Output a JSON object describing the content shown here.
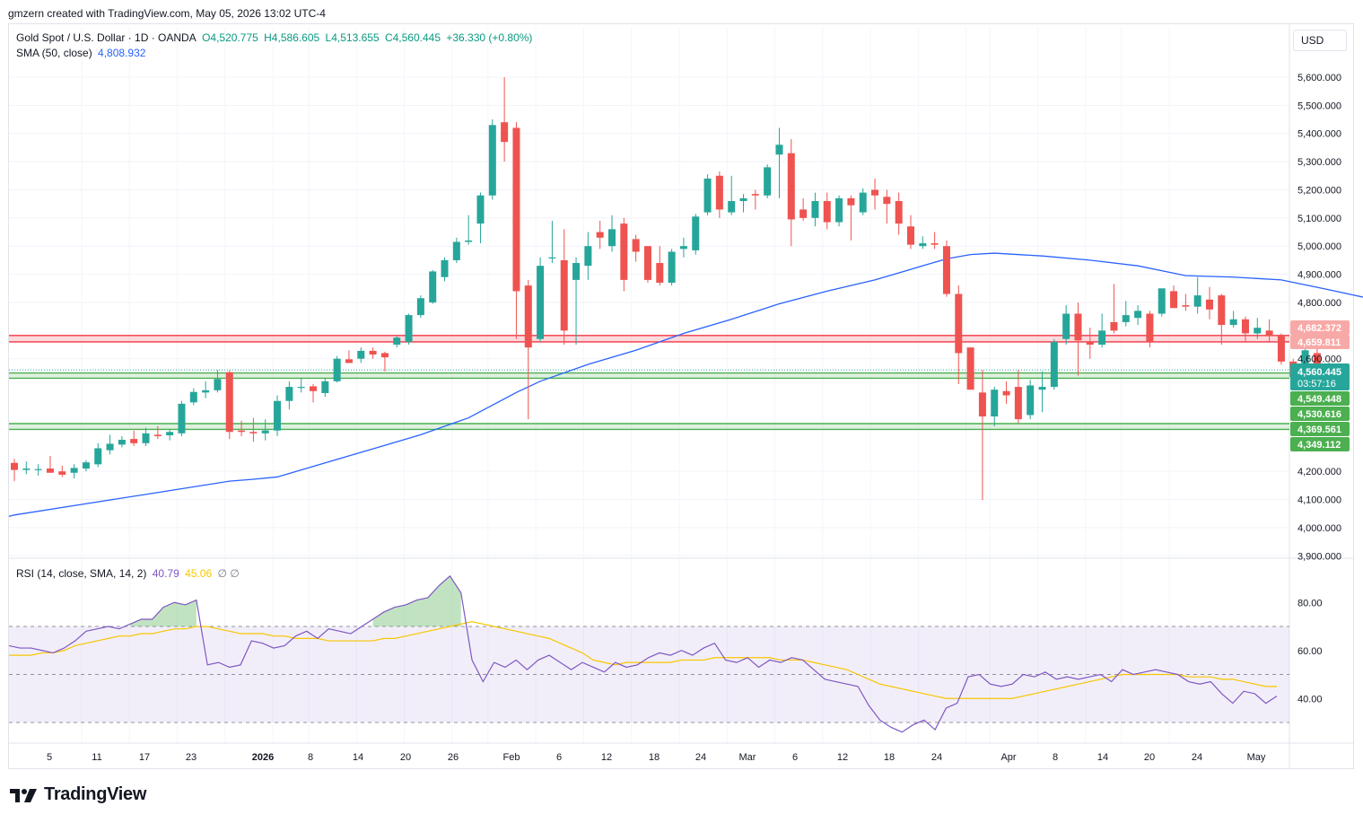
{
  "header": {
    "credit": "gmzern created with TradingView.com, May 05, 2026 13:02 UTC-4"
  },
  "legend": {
    "symbol": "Gold Spot / U.S. Dollar · 1D · OANDA",
    "open": "O4,520.775",
    "high": "H4,586.605",
    "low": "L4,513.655",
    "close": "C4,560.445",
    "change": "+36.330 (+0.80%)",
    "ma_label": "SMA (50, close)",
    "ma_value": "4,808.932",
    "rsi_label": "RSI (14, close, SMA, 14, 2)",
    "rsi_value": "40.79",
    "rsi_ma_value": "45.06",
    "rsi_extra": "∅ ∅"
  },
  "currency": "USD",
  "branding": "TradingView",
  "colors": {
    "up": "#26a69a",
    "down": "#ef5350",
    "sma": "#2962ff",
    "rsi": "#7e57c2",
    "rsi_ma": "#f7c600",
    "resistance_zone": "#f23645",
    "support_zone": "#4caf50"
  },
  "chart_data": [
    {
      "type": "candlestick",
      "title": "Gold Spot / U.S. Dollar · 1D · OANDA",
      "ylim": [
        3900,
        5700
      ],
      "y_ticks": [
        "5,600.000",
        "5,500.000",
        "5,400.000",
        "5,300.000",
        "5,200.000",
        "5,100.000",
        "5,000.000",
        "4,900.000",
        "4,800.000",
        "4,600.000",
        "4,200.000",
        "4,100.000",
        "4,000.000",
        "3,900.000"
      ],
      "x_ticks": [
        "5",
        "11",
        "17",
        "23",
        "2026",
        "8",
        "14",
        "20",
        "26",
        "Feb",
        "6",
        "12",
        "18",
        "24",
        "Mar",
        "6",
        "12",
        "18",
        "24",
        "Apr",
        "8",
        "14",
        "20",
        "24",
        "May"
      ],
      "candles": [
        {
          "o": 4230,
          "h": 4245,
          "l": 4165,
          "c": 4205
        },
        {
          "o": 4205,
          "h": 4235,
          "l": 4190,
          "c": 4210
        },
        {
          "o": 4205,
          "h": 4225,
          "l": 4185,
          "c": 4208
        },
        {
          "o": 4210,
          "h": 4255,
          "l": 4195,
          "c": 4195
        },
        {
          "o": 4200,
          "h": 4220,
          "l": 4180,
          "c": 4188
        },
        {
          "o": 4195,
          "h": 4225,
          "l": 4175,
          "c": 4212
        },
        {
          "o": 4210,
          "h": 4240,
          "l": 4200,
          "c": 4232
        },
        {
          "o": 4225,
          "h": 4300,
          "l": 4215,
          "c": 4282
        },
        {
          "o": 4275,
          "h": 4330,
          "l": 4260,
          "c": 4298
        },
        {
          "o": 4295,
          "h": 4325,
          "l": 4285,
          "c": 4312
        },
        {
          "o": 4315,
          "h": 4345,
          "l": 4290,
          "c": 4300
        },
        {
          "o": 4300,
          "h": 4355,
          "l": 4290,
          "c": 4335
        },
        {
          "o": 4330,
          "h": 4360,
          "l": 4315,
          "c": 4325
        },
        {
          "o": 4328,
          "h": 4350,
          "l": 4310,
          "c": 4340
        },
        {
          "o": 4335,
          "h": 4450,
          "l": 4325,
          "c": 4440
        },
        {
          "o": 4445,
          "h": 4495,
          "l": 4435,
          "c": 4482
        },
        {
          "o": 4480,
          "h": 4520,
          "l": 4460,
          "c": 4488
        },
        {
          "o": 4488,
          "h": 4560,
          "l": 4480,
          "c": 4528
        },
        {
          "o": 4552,
          "h": 4558,
          "l": 4315,
          "c": 4340
        },
        {
          "o": 4345,
          "h": 4380,
          "l": 4325,
          "c": 4340
        },
        {
          "o": 4340,
          "h": 4390,
          "l": 4305,
          "c": 4335
        },
        {
          "o": 4335,
          "h": 4385,
          "l": 4310,
          "c": 4345
        },
        {
          "o": 4345,
          "h": 4470,
          "l": 4325,
          "c": 4450
        },
        {
          "o": 4450,
          "h": 4520,
          "l": 4420,
          "c": 4500
        },
        {
          "o": 4500,
          "h": 4530,
          "l": 4480,
          "c": 4500
        },
        {
          "o": 4502,
          "h": 4510,
          "l": 4445,
          "c": 4485
        },
        {
          "o": 4478,
          "h": 4530,
          "l": 4465,
          "c": 4520
        },
        {
          "o": 4520,
          "h": 4610,
          "l": 4515,
          "c": 4600
        },
        {
          "o": 4598,
          "h": 4630,
          "l": 4590,
          "c": 4585
        },
        {
          "o": 4600,
          "h": 4640,
          "l": 4585,
          "c": 4628
        },
        {
          "o": 4628,
          "h": 4640,
          "l": 4600,
          "c": 4615
        },
        {
          "o": 4620,
          "h": 4625,
          "l": 4555,
          "c": 4605
        },
        {
          "o": 4650,
          "h": 4680,
          "l": 4640,
          "c": 4675
        },
        {
          "o": 4660,
          "h": 4760,
          "l": 4650,
          "c": 4755
        },
        {
          "o": 4755,
          "h": 4825,
          "l": 4745,
          "c": 4815
        },
        {
          "o": 4800,
          "h": 4915,
          "l": 4795,
          "c": 4910
        },
        {
          "o": 4890,
          "h": 4960,
          "l": 4875,
          "c": 4950
        },
        {
          "o": 4950,
          "h": 5030,
          "l": 4940,
          "c": 5015
        },
        {
          "o": 5015,
          "h": 5110,
          "l": 5005,
          "c": 5020
        },
        {
          "o": 5080,
          "h": 5190,
          "l": 5010,
          "c": 5180
        },
        {
          "o": 5180,
          "h": 5450,
          "l": 5165,
          "c": 5430
        },
        {
          "o": 5440,
          "h": 5600,
          "l": 5300,
          "c": 5370
        },
        {
          "o": 5420,
          "h": 5440,
          "l": 4670,
          "c": 4840
        },
        {
          "o": 4860,
          "h": 4880,
          "l": 4385,
          "c": 4640
        },
        {
          "o": 4670,
          "h": 4960,
          "l": 4660,
          "c": 4930
        },
        {
          "o": 4960,
          "h": 5090,
          "l": 4940,
          "c": 4960
        },
        {
          "o": 4950,
          "h": 5060,
          "l": 4650,
          "c": 4700
        },
        {
          "o": 4880,
          "h": 4960,
          "l": 4650,
          "c": 4940
        },
        {
          "o": 4930,
          "h": 5050,
          "l": 4880,
          "c": 5000
        },
        {
          "o": 5050,
          "h": 5090,
          "l": 4990,
          "c": 5030
        },
        {
          "o": 5000,
          "h": 5110,
          "l": 4980,
          "c": 5060
        },
        {
          "o": 5080,
          "h": 5100,
          "l": 4840,
          "c": 4880
        },
        {
          "o": 5025,
          "h": 5040,
          "l": 4945,
          "c": 4980
        },
        {
          "o": 5000,
          "h": 5000,
          "l": 4870,
          "c": 4880
        },
        {
          "o": 4940,
          "h": 5000,
          "l": 4860,
          "c": 4870
        },
        {
          "o": 4870,
          "h": 4990,
          "l": 4860,
          "c": 4980
        },
        {
          "o": 4990,
          "h": 5030,
          "l": 4960,
          "c": 5000
        },
        {
          "o": 4985,
          "h": 5115,
          "l": 4970,
          "c": 5105
        },
        {
          "o": 5120,
          "h": 5255,
          "l": 5110,
          "c": 5240
        },
        {
          "o": 5250,
          "h": 5265,
          "l": 5100,
          "c": 5130
        },
        {
          "o": 5120,
          "h": 5250,
          "l": 5110,
          "c": 5160
        },
        {
          "o": 5160,
          "h": 5185,
          "l": 5120,
          "c": 5170
        },
        {
          "o": 5185,
          "h": 5200,
          "l": 5130,
          "c": 5180
        },
        {
          "o": 5180,
          "h": 5290,
          "l": 5170,
          "c": 5280
        },
        {
          "o": 5325,
          "h": 5420,
          "l": 5170,
          "c": 5360
        },
        {
          "o": 5330,
          "h": 5380,
          "l": 5000,
          "c": 5095
        },
        {
          "o": 5130,
          "h": 5170,
          "l": 5090,
          "c": 5100
        },
        {
          "o": 5100,
          "h": 5190,
          "l": 5070,
          "c": 5160
        },
        {
          "o": 5160,
          "h": 5190,
          "l": 5060,
          "c": 5085
        },
        {
          "o": 5085,
          "h": 5180,
          "l": 5070,
          "c": 5170
        },
        {
          "o": 5170,
          "h": 5180,
          "l": 5020,
          "c": 5145
        },
        {
          "o": 5120,
          "h": 5205,
          "l": 5110,
          "c": 5190
        },
        {
          "o": 5200,
          "h": 5240,
          "l": 5130,
          "c": 5180
        },
        {
          "o": 5175,
          "h": 5200,
          "l": 5080,
          "c": 5150
        },
        {
          "o": 5160,
          "h": 5190,
          "l": 5040,
          "c": 5080
        },
        {
          "o": 5070,
          "h": 5110,
          "l": 4990,
          "c": 5005
        },
        {
          "o": 5000,
          "h": 5035,
          "l": 4990,
          "c": 5010
        },
        {
          "o": 5010,
          "h": 5050,
          "l": 4990,
          "c": 5005
        },
        {
          "o": 5000,
          "h": 5020,
          "l": 4820,
          "c": 4830
        },
        {
          "o": 4830,
          "h": 4860,
          "l": 4510,
          "c": 4620
        },
        {
          "o": 4640,
          "h": 4640,
          "l": 4495,
          "c": 4490
        },
        {
          "o": 4480,
          "h": 4560,
          "l": 4098,
          "c": 4395
        },
        {
          "o": 4395,
          "h": 4500,
          "l": 4360,
          "c": 4490
        },
        {
          "o": 4485,
          "h": 4520,
          "l": 4440,
          "c": 4470
        },
        {
          "o": 4500,
          "h": 4560,
          "l": 4370,
          "c": 4385
        },
        {
          "o": 4400,
          "h": 4525,
          "l": 4385,
          "c": 4505
        },
        {
          "o": 4490,
          "h": 4555,
          "l": 4410,
          "c": 4500
        },
        {
          "o": 4500,
          "h": 4670,
          "l": 4490,
          "c": 4660
        },
        {
          "o": 4670,
          "h": 4790,
          "l": 4650,
          "c": 4760
        },
        {
          "o": 4760,
          "h": 4800,
          "l": 4540,
          "c": 4665
        },
        {
          "o": 4660,
          "h": 4710,
          "l": 4600,
          "c": 4650
        },
        {
          "o": 4650,
          "h": 4760,
          "l": 4640,
          "c": 4700
        },
        {
          "o": 4730,
          "h": 4865,
          "l": 4690,
          "c": 4700
        },
        {
          "o": 4730,
          "h": 4805,
          "l": 4715,
          "c": 4755
        },
        {
          "o": 4745,
          "h": 4790,
          "l": 4720,
          "c": 4770
        },
        {
          "o": 4760,
          "h": 4770,
          "l": 4640,
          "c": 4660
        },
        {
          "o": 4760,
          "h": 4840,
          "l": 4750,
          "c": 4850
        },
        {
          "o": 4840,
          "h": 4860,
          "l": 4780,
          "c": 4780
        },
        {
          "o": 4790,
          "h": 4830,
          "l": 4770,
          "c": 4785
        },
        {
          "o": 4785,
          "h": 4890,
          "l": 4760,
          "c": 4825
        },
        {
          "o": 4810,
          "h": 4855,
          "l": 4740,
          "c": 4775
        },
        {
          "o": 4825,
          "h": 4830,
          "l": 4650,
          "c": 4720
        },
        {
          "o": 4720,
          "h": 4770,
          "l": 4710,
          "c": 4740
        },
        {
          "o": 4740,
          "h": 4750,
          "l": 4660,
          "c": 4690
        },
        {
          "o": 4690,
          "h": 4745,
          "l": 4670,
          "c": 4710
        },
        {
          "o": 4700,
          "h": 4740,
          "l": 4660,
          "c": 4680
        },
        {
          "o": 4680,
          "h": 4690,
          "l": 4580,
          "c": 4590
        },
        {
          "o": 4590,
          "h": 4600,
          "l": 4520,
          "c": 4535
        },
        {
          "o": 4540,
          "h": 4650,
          "l": 4535,
          "c": 4630
        },
        {
          "o": 4620,
          "h": 4640,
          "l": 4510,
          "c": 4520
        },
        {
          "o": 4520,
          "h": 4587,
          "l": 4514,
          "c": 4560
        }
      ],
      "sma": {
        "name": "SMA (50, close)",
        "points": [
          [
            0,
            4045
          ],
          [
            6,
            4085
          ],
          [
            12,
            4125
          ],
          [
            18,
            4165
          ],
          [
            20,
            4172
          ],
          [
            22,
            4180
          ],
          [
            26,
            4230
          ],
          [
            30,
            4280
          ],
          [
            34,
            4330
          ],
          [
            38,
            4390
          ],
          [
            40,
            4435
          ],
          [
            42,
            4480
          ],
          [
            44,
            4520
          ],
          [
            48,
            4580
          ],
          [
            52,
            4630
          ],
          [
            56,
            4690
          ],
          [
            60,
            4740
          ],
          [
            64,
            4795
          ],
          [
            68,
            4840
          ],
          [
            72,
            4880
          ],
          [
            76,
            4930
          ],
          [
            78,
            4955
          ],
          [
            80,
            4970
          ],
          [
            82,
            4975
          ],
          [
            86,
            4965
          ],
          [
            90,
            4950
          ],
          [
            94,
            4930
          ],
          [
            98,
            4895
          ],
          [
            102,
            4890
          ],
          [
            106,
            4880
          ],
          [
            110,
            4845
          ],
          [
            114,
            4808
          ]
        ]
      },
      "price_lines": [
        {
          "value": "4,682.372",
          "zone": "resistance"
        },
        {
          "value": "4,659.811",
          "zone": "resistance"
        },
        {
          "value": "4,560.445",
          "zone": "current"
        },
        {
          "value": "4,549.448",
          "zone": "support"
        },
        {
          "value": "4,530.616",
          "zone": "support"
        },
        {
          "value": "4,369.561",
          "zone": "support"
        },
        {
          "value": "4,349.112",
          "zone": "support"
        }
      ],
      "countdown": "03:57:16"
    },
    {
      "type": "line",
      "title": "RSI (14, close, SMA, 14, 2)",
      "ylim": [
        20,
        95
      ],
      "y_ticks": [
        "80.00",
        "60.00",
        "40.00"
      ],
      "bands": {
        "upper": 70,
        "middle": 50,
        "lower": 30
      },
      "series": [
        {
          "name": "RSI",
          "values": [
            62,
            61,
            61,
            60,
            59,
            61,
            64,
            68,
            69,
            70,
            69,
            71,
            73,
            73,
            78,
            80,
            79,
            81,
            54,
            55,
            53,
            54,
            64,
            63,
            61,
            62,
            66,
            68,
            65,
            69,
            68,
            67,
            70,
            73,
            76,
            78,
            79,
            81,
            82,
            87,
            91,
            84,
            56,
            47,
            55,
            53,
            56,
            52,
            56,
            58,
            55,
            52,
            55,
            53,
            51,
            55,
            53,
            54,
            57,
            59,
            58,
            60,
            58,
            61,
            63,
            56,
            55,
            57,
            53,
            56,
            55,
            57,
            56,
            52,
            48,
            47,
            46,
            45,
            37,
            31,
            28,
            26,
            29,
            31,
            27,
            36,
            38,
            49,
            50,
            46,
            45,
            46,
            50,
            49,
            51,
            48,
            49,
            48,
            49,
            50,
            47,
            52,
            50,
            51,
            52,
            51,
            50,
            47,
            46,
            47,
            42,
            38,
            43,
            42,
            38,
            41
          ]
        },
        {
          "name": "RSI MA",
          "values": [
            58,
            58,
            58,
            59,
            59,
            60,
            62,
            63,
            64,
            65,
            66,
            66,
            67,
            67,
            68,
            69,
            69,
            70,
            70,
            69,
            68,
            67,
            67,
            67,
            66,
            66,
            65,
            65,
            65,
            64,
            64,
            64,
            64,
            64,
            65,
            65,
            66,
            67,
            68,
            69,
            70,
            71,
            72,
            71,
            70,
            69,
            68,
            67,
            66,
            65,
            63,
            61,
            59,
            56,
            55,
            54,
            55,
            55,
            55,
            55,
            55,
            56,
            56,
            56,
            57,
            57,
            57,
            57,
            57,
            57,
            56,
            56,
            56,
            55,
            54,
            53,
            52,
            50,
            48,
            46,
            45,
            44,
            43,
            42,
            41,
            40,
            40,
            40,
            40,
            40,
            40,
            40,
            41,
            42,
            43,
            44,
            45,
            46,
            47,
            48,
            49,
            50,
            50,
            50,
            50,
            50,
            50,
            49,
            49,
            49,
            48,
            48,
            47,
            46,
            45,
            45
          ]
        }
      ]
    }
  ]
}
